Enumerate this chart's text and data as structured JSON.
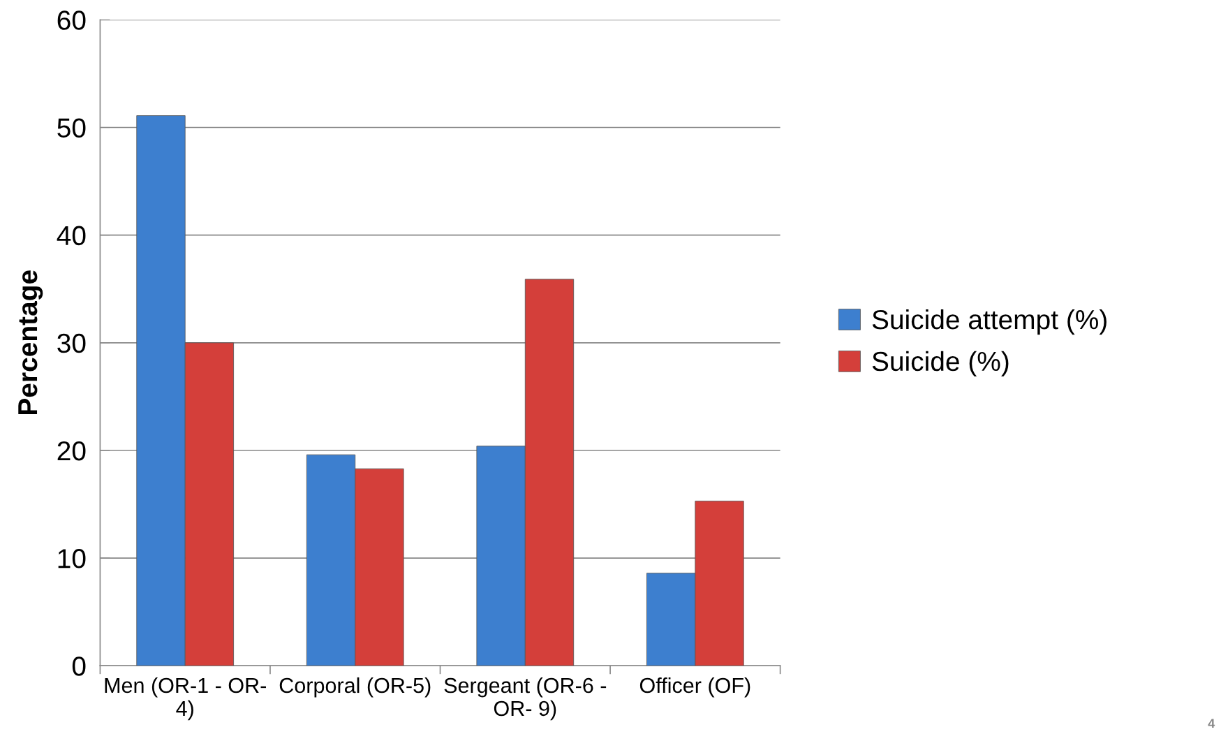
{
  "chart_data": {
    "type": "bar",
    "ylabel": "Percentage",
    "categories": [
      "Men (OR-1 - OR-4)",
      "Corporal (OR-5)",
      "Sergeant (OR-6 - OR- 9)",
      "Officer (OF)"
    ],
    "series": [
      {
        "name": "Suicide attempt (%)",
        "color": "#3d7fcf",
        "values": [
          51.1,
          19.6,
          20.4,
          8.6
        ]
      },
      {
        "name": "Suicide (%)",
        "color": "#d43f3a",
        "values": [
          30,
          18.3,
          35.9,
          15.3
        ]
      }
    ],
    "ylim": [
      0,
      60
    ],
    "yticks": [
      0,
      10,
      20,
      30,
      40,
      50,
      60
    ],
    "grid": "y",
    "legend": "right",
    "annotations": [
      "4"
    ]
  }
}
